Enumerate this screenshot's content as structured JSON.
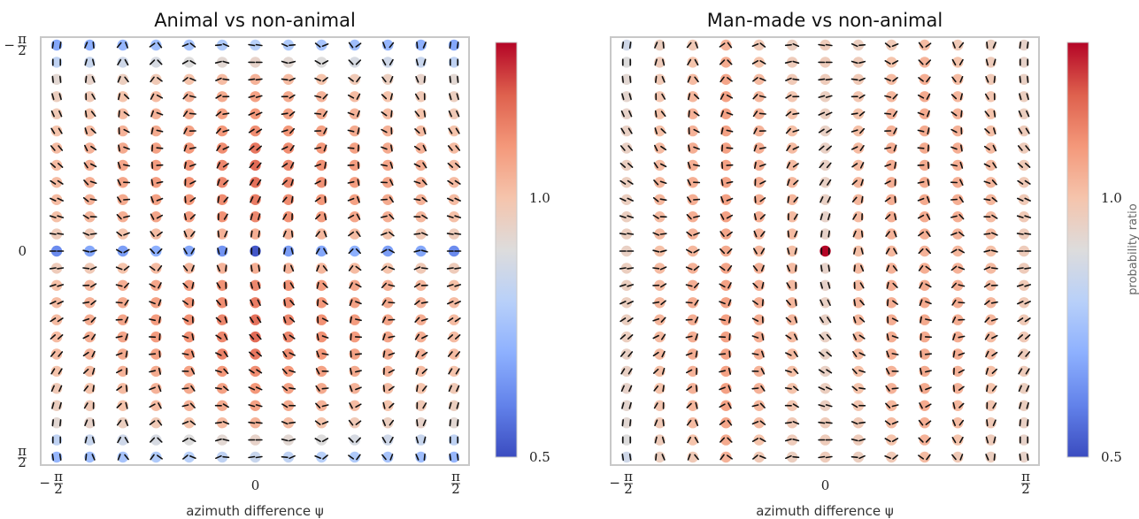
{
  "figure": {
    "colormap": "coolwarm",
    "colorbar_range": [
      0.5,
      1.3
    ],
    "colorbar_label": "probability ratio"
  },
  "chart_data": [
    {
      "type": "scatter",
      "title": "Animal vs non-animal",
      "xlabel": "azimuth difference ψ",
      "ylabel": "",
      "xlim": [
        -1.5708,
        1.5708
      ],
      "ylim": [
        -1.5708,
        1.5708
      ],
      "x_ticks": [
        {
          "value": -1.5708,
          "num": "π",
          "neg": true
        },
        {
          "value": 0,
          "text": "0"
        },
        {
          "value": 1.5708,
          "num": "π",
          "neg": false
        }
      ],
      "y_ticks": [
        {
          "value": -1.5708,
          "num": "π",
          "neg": true
        },
        {
          "value": 0,
          "text": "0"
        },
        {
          "value": 1.5708,
          "num": "π",
          "neg": false
        }
      ],
      "grid_cols": 13,
      "grid_rows": 25,
      "values": [
        [
          0.68,
          0.7,
          0.72,
          0.74,
          0.76,
          0.78,
          0.8,
          0.78,
          0.76,
          0.74,
          0.72,
          0.7,
          0.68
        ],
        [
          0.82,
          0.84,
          0.86,
          0.88,
          0.9,
          0.92,
          0.94,
          0.92,
          0.9,
          0.88,
          0.86,
          0.84,
          0.82
        ],
        [
          0.92,
          0.94,
          0.96,
          0.98,
          1.0,
          1.02,
          1.04,
          1.02,
          1.0,
          0.98,
          0.96,
          0.94,
          0.92
        ],
        [
          0.96,
          0.98,
          1.0,
          1.02,
          1.04,
          1.06,
          1.08,
          1.06,
          1.04,
          1.02,
          1.0,
          0.98,
          0.96
        ],
        [
          0.98,
          1.0,
          1.02,
          1.04,
          1.06,
          1.08,
          1.1,
          1.08,
          1.06,
          1.04,
          1.02,
          1.0,
          0.98
        ],
        [
          1.0,
          1.02,
          1.04,
          1.06,
          1.08,
          1.1,
          1.12,
          1.1,
          1.08,
          1.06,
          1.04,
          1.02,
          1.0
        ],
        [
          1.02,
          1.04,
          1.06,
          1.08,
          1.1,
          1.12,
          1.16,
          1.12,
          1.1,
          1.08,
          1.06,
          1.04,
          1.02
        ],
        [
          1.02,
          1.05,
          1.07,
          1.09,
          1.11,
          1.13,
          1.18,
          1.13,
          1.11,
          1.09,
          1.07,
          1.05,
          1.02
        ],
        [
          1.02,
          1.05,
          1.07,
          1.09,
          1.11,
          1.13,
          1.17,
          1.13,
          1.11,
          1.09,
          1.07,
          1.05,
          1.02
        ],
        [
          1.02,
          1.04,
          1.06,
          1.08,
          1.1,
          1.12,
          1.15,
          1.12,
          1.1,
          1.08,
          1.06,
          1.04,
          1.02
        ],
        [
          1.01,
          1.03,
          1.05,
          1.07,
          1.09,
          1.11,
          1.13,
          1.11,
          1.09,
          1.07,
          1.05,
          1.03,
          1.01
        ],
        [
          0.97,
          0.98,
          1.0,
          1.02,
          1.03,
          1.04,
          1.05,
          1.04,
          1.03,
          1.02,
          1.0,
          0.98,
          0.97
        ],
        [
          0.62,
          0.68,
          0.66,
          0.7,
          0.68,
          0.64,
          0.52,
          0.66,
          0.68,
          0.7,
          0.66,
          0.68,
          0.62
        ],
        [
          0.97,
          0.98,
          1.0,
          1.02,
          1.03,
          1.04,
          1.05,
          1.04,
          1.03,
          1.02,
          1.0,
          0.98,
          0.97
        ],
        [
          1.01,
          1.03,
          1.05,
          1.07,
          1.09,
          1.11,
          1.13,
          1.11,
          1.09,
          1.07,
          1.05,
          1.03,
          1.01
        ],
        [
          1.02,
          1.04,
          1.06,
          1.08,
          1.1,
          1.12,
          1.15,
          1.12,
          1.1,
          1.08,
          1.06,
          1.04,
          1.02
        ],
        [
          1.02,
          1.05,
          1.07,
          1.09,
          1.11,
          1.13,
          1.17,
          1.13,
          1.11,
          1.09,
          1.07,
          1.05,
          1.02
        ],
        [
          1.02,
          1.05,
          1.07,
          1.09,
          1.11,
          1.13,
          1.18,
          1.13,
          1.11,
          1.09,
          1.07,
          1.05,
          1.02
        ],
        [
          1.02,
          1.04,
          1.06,
          1.08,
          1.1,
          1.14,
          1.16,
          1.12,
          1.1,
          1.08,
          1.06,
          1.04,
          1.02
        ],
        [
          1.0,
          1.02,
          1.04,
          1.06,
          1.08,
          1.1,
          1.12,
          1.1,
          1.08,
          1.06,
          1.04,
          1.02,
          1.0
        ],
        [
          0.98,
          1.0,
          1.02,
          1.04,
          1.06,
          1.08,
          1.1,
          1.08,
          1.06,
          1.04,
          1.02,
          1.0,
          0.98
        ],
        [
          0.96,
          0.98,
          1.0,
          1.02,
          1.04,
          1.06,
          1.08,
          1.06,
          1.04,
          1.02,
          1.0,
          0.98,
          0.96
        ],
        [
          0.92,
          0.94,
          0.96,
          0.98,
          1.0,
          1.02,
          1.04,
          1.02,
          1.0,
          0.98,
          0.96,
          0.94,
          0.92
        ],
        [
          0.82,
          0.84,
          0.86,
          0.88,
          0.9,
          0.92,
          0.94,
          0.92,
          0.9,
          0.88,
          0.86,
          0.84,
          0.82
        ],
        [
          0.72,
          0.74,
          0.76,
          0.78,
          0.8,
          0.82,
          0.84,
          0.82,
          0.8,
          0.78,
          0.76,
          0.74,
          0.72
        ]
      ]
    },
    {
      "type": "scatter",
      "title": "Man-made vs non-animal",
      "xlabel": "azimuth difference ψ",
      "ylabel": "",
      "xlim": [
        -1.5708,
        1.5708
      ],
      "ylim": [
        -1.5708,
        1.5708
      ],
      "x_ticks": [
        {
          "value": -1.5708,
          "num": "π",
          "neg": true
        },
        {
          "value": 0,
          "text": "0"
        },
        {
          "value": 1.5708,
          "num": "π",
          "neg": false
        }
      ],
      "y_ticks": [],
      "grid_cols": 13,
      "grid_rows": 25,
      "values": [
        [
          0.86,
          0.96,
          0.98,
          1.04,
          0.98,
          0.96,
          0.97,
          0.96,
          0.98,
          1.02,
          0.98,
          0.96,
          0.94
        ],
        [
          0.9,
          0.97,
          1.0,
          1.06,
          1.0,
          0.97,
          0.97,
          0.97,
          1.0,
          1.04,
          1.0,
          0.97,
          0.94
        ],
        [
          0.92,
          0.98,
          1.02,
          1.07,
          1.02,
          0.98,
          0.97,
          0.98,
          1.02,
          1.05,
          1.02,
          0.98,
          0.95
        ],
        [
          0.93,
          0.99,
          1.03,
          1.08,
          1.03,
          0.99,
          0.96,
          0.99,
          1.03,
          1.06,
          1.03,
          0.99,
          0.96
        ],
        [
          0.94,
          1.0,
          1.04,
          1.08,
          1.04,
          1.0,
          0.96,
          1.0,
          1.04,
          1.06,
          1.04,
          1.0,
          0.96
        ],
        [
          0.95,
          1.01,
          1.04,
          1.08,
          1.04,
          1.01,
          0.95,
          1.01,
          1.04,
          1.06,
          1.04,
          1.01,
          0.97
        ],
        [
          0.95,
          1.02,
          1.05,
          1.08,
          1.05,
          1.02,
          0.95,
          1.02,
          1.05,
          1.06,
          1.05,
          1.02,
          0.97
        ],
        [
          0.96,
          1.02,
          1.05,
          1.08,
          1.05,
          1.02,
          0.95,
          1.02,
          1.05,
          1.06,
          1.05,
          1.02,
          0.98
        ],
        [
          0.96,
          1.03,
          1.05,
          1.08,
          1.05,
          1.03,
          0.95,
          1.03,
          1.05,
          1.06,
          1.05,
          1.03,
          0.98
        ],
        [
          0.96,
          1.03,
          1.05,
          1.08,
          1.05,
          1.03,
          0.95,
          1.03,
          1.05,
          1.06,
          1.05,
          1.03,
          0.98
        ],
        [
          0.96,
          1.02,
          1.05,
          1.08,
          1.05,
          1.02,
          0.94,
          1.02,
          1.05,
          1.06,
          1.05,
          1.02,
          0.98
        ],
        [
          0.96,
          1.02,
          1.04,
          1.07,
          1.04,
          1.02,
          0.94,
          1.02,
          1.04,
          1.05,
          1.04,
          1.02,
          0.97
        ],
        [
          0.95,
          1.01,
          1.03,
          1.06,
          1.03,
          1.01,
          1.32,
          1.01,
          1.03,
          1.04,
          1.03,
          1.01,
          0.97
        ],
        [
          0.96,
          1.02,
          1.04,
          1.07,
          1.04,
          1.02,
          0.94,
          1.02,
          1.04,
          1.05,
          1.04,
          1.02,
          0.97
        ],
        [
          0.96,
          1.02,
          1.05,
          1.08,
          1.05,
          1.02,
          0.94,
          1.02,
          1.05,
          1.06,
          1.05,
          1.02,
          0.98
        ],
        [
          0.96,
          1.03,
          1.05,
          1.08,
          1.05,
          1.03,
          0.95,
          1.03,
          1.05,
          1.06,
          1.05,
          1.03,
          0.98
        ],
        [
          0.96,
          1.03,
          1.05,
          1.08,
          1.05,
          1.03,
          0.95,
          1.03,
          1.05,
          1.06,
          1.05,
          1.03,
          0.98
        ],
        [
          0.96,
          1.02,
          1.05,
          1.08,
          1.05,
          1.02,
          0.95,
          1.02,
          1.05,
          1.06,
          1.05,
          1.02,
          0.98
        ],
        [
          0.95,
          1.02,
          1.05,
          1.08,
          1.05,
          1.02,
          0.95,
          1.02,
          1.05,
          1.06,
          1.05,
          1.02,
          0.97
        ],
        [
          0.95,
          1.01,
          1.04,
          1.08,
          1.04,
          1.01,
          0.95,
          1.01,
          1.04,
          1.06,
          1.04,
          1.01,
          0.97
        ],
        [
          0.94,
          1.0,
          1.04,
          1.08,
          1.04,
          1.0,
          0.96,
          1.0,
          1.04,
          1.06,
          1.04,
          1.0,
          0.96
        ],
        [
          0.93,
          0.99,
          1.03,
          1.08,
          1.03,
          0.99,
          0.96,
          0.99,
          1.03,
          1.06,
          1.03,
          0.99,
          0.96
        ],
        [
          0.92,
          0.98,
          1.02,
          1.07,
          1.02,
          0.98,
          0.97,
          0.98,
          1.02,
          1.05,
          1.02,
          0.98,
          0.95
        ],
        [
          0.9,
          0.97,
          1.0,
          1.06,
          1.0,
          0.97,
          0.97,
          0.97,
          1.0,
          1.04,
          1.0,
          0.97,
          0.94
        ],
        [
          0.86,
          0.96,
          0.98,
          1.04,
          0.98,
          0.96,
          0.97,
          0.96,
          0.98,
          1.02,
          0.98,
          0.96,
          0.94
        ]
      ]
    }
  ],
  "colorbars": [
    {
      "ticks": [
        {
          "value": 0.5,
          "text": "0.5"
        },
        {
          "value": 1.0,
          "text": "1.0"
        }
      ],
      "label": ""
    },
    {
      "ticks": [
        {
          "value": 0.5,
          "text": "0.5"
        },
        {
          "value": 1.0,
          "text": "1.0"
        }
      ],
      "label": "probability ratio"
    }
  ]
}
